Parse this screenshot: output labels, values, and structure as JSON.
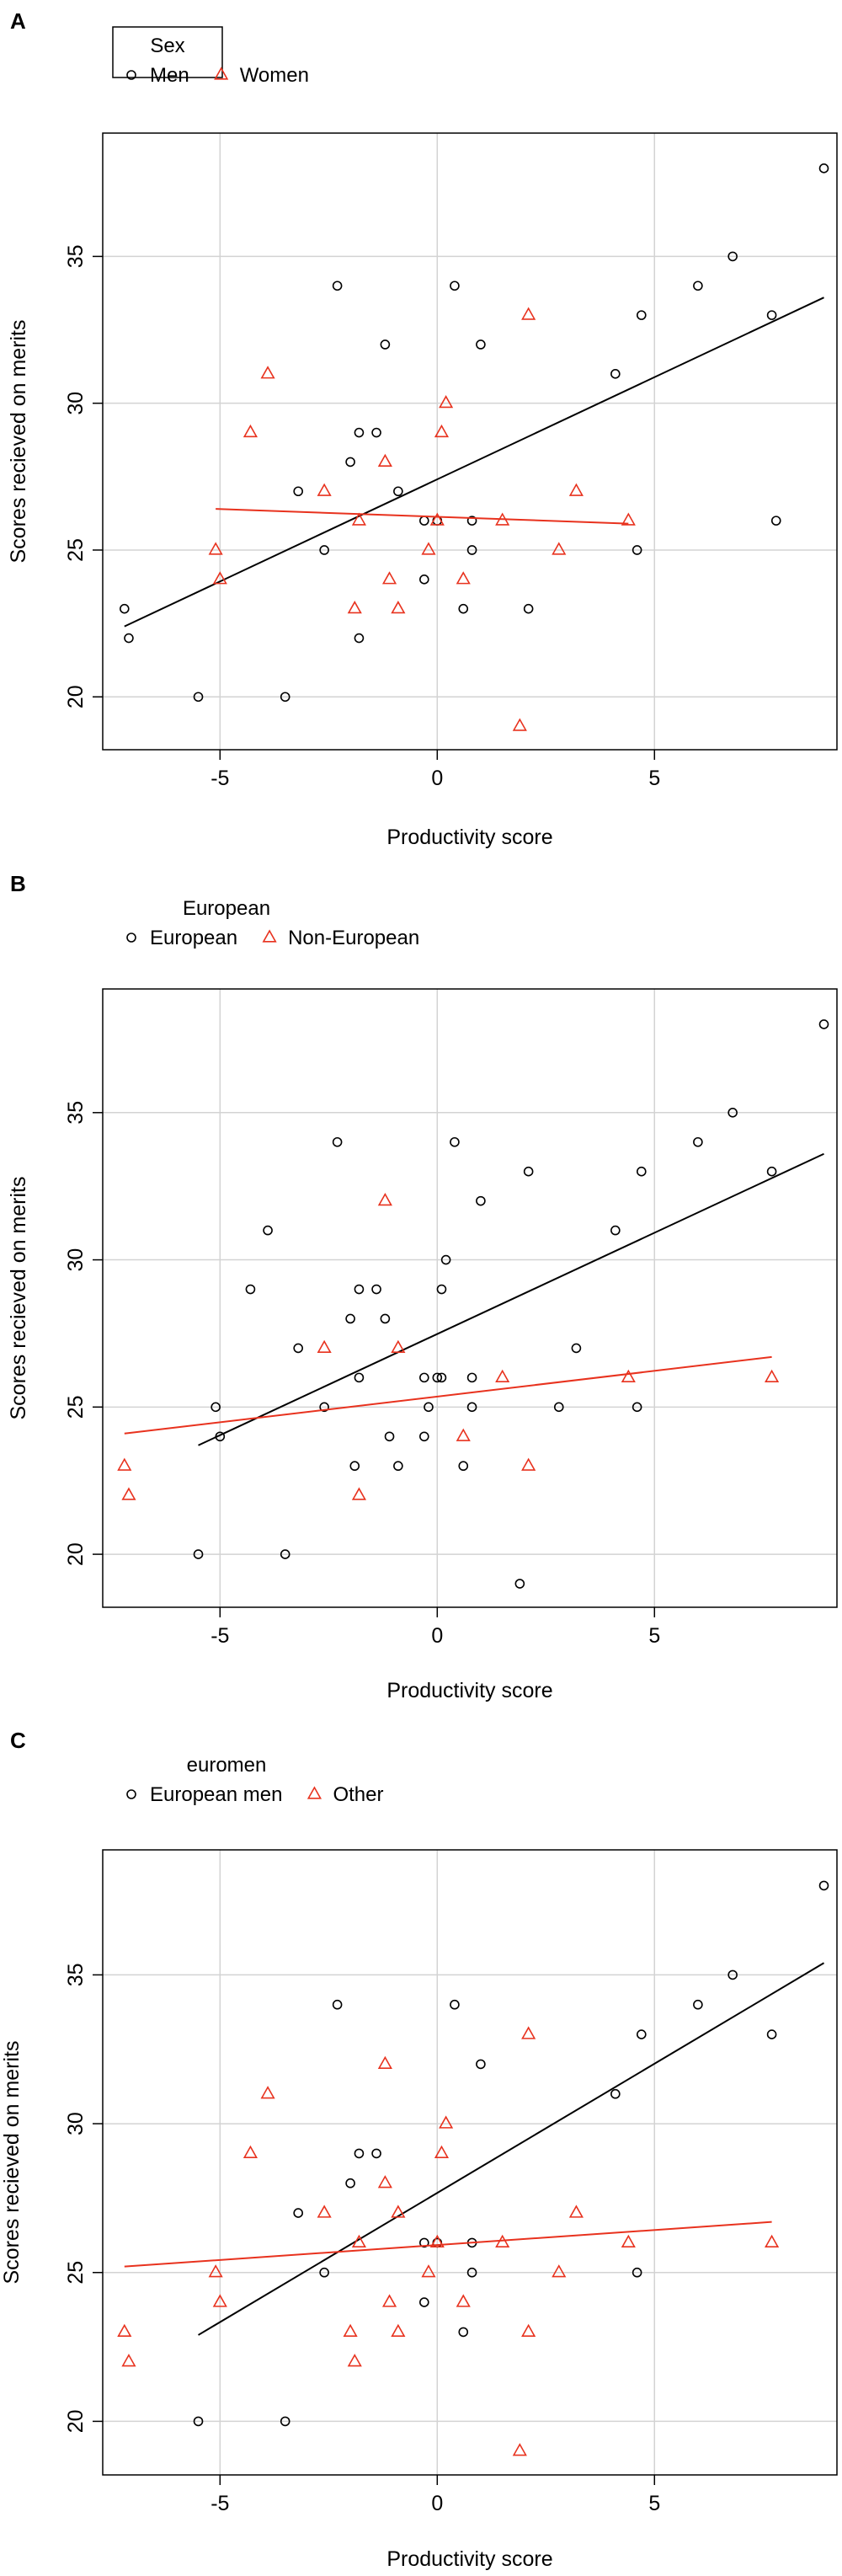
{
  "colors": {
    "series_a": "#000000",
    "series_b": "#e8321e",
    "grid": "#d3d3d3",
    "axis": "#000000"
  },
  "chart_data": [
    {
      "panel_letter": "A",
      "type": "scatter",
      "title": "",
      "xlabel": "Productivity score",
      "ylabel": "Scores recieved on merits",
      "xlim": [
        -7.7,
        9.2
      ],
      "ylim": [
        18.2,
        39.2
      ],
      "xticks": [
        -5,
        0,
        5
      ],
      "yticks": [
        20,
        25,
        30,
        35
      ],
      "grid": true,
      "legend": {
        "position": "top-left",
        "title": "Sex",
        "entries": [
          "Men",
          "Women"
        ]
      },
      "series": [
        {
          "name": "Men",
          "marker": "circle",
          "points": [
            [
              -7.2,
              23
            ],
            [
              -7.1,
              22
            ],
            [
              -5.5,
              20
            ],
            [
              -3.5,
              20
            ],
            [
              -3.2,
              27
            ],
            [
              -2.6,
              25
            ],
            [
              -2.3,
              34
            ],
            [
              -2.0,
              28
            ],
            [
              -1.8,
              29
            ],
            [
              -1.8,
              22
            ],
            [
              -1.4,
              29
            ],
            [
              -1.2,
              32
            ],
            [
              -0.9,
              27
            ],
            [
              -0.3,
              24
            ],
            [
              -0.3,
              26
            ],
            [
              0,
              26
            ],
            [
              0.4,
              34
            ],
            [
              0.6,
              23
            ],
            [
              0.8,
              25
            ],
            [
              0.8,
              26
            ],
            [
              1.0,
              32
            ],
            [
              2.1,
              23
            ],
            [
              4.1,
              31
            ],
            [
              4.6,
              25
            ],
            [
              4.7,
              33
            ],
            [
              6.0,
              34
            ],
            [
              6.8,
              35
            ],
            [
              7.7,
              33
            ],
            [
              7.8,
              26
            ],
            [
              8.9,
              38
            ]
          ],
          "trend": [
            [
              -7.2,
              22.4
            ],
            [
              8.9,
              33.6
            ]
          ]
        },
        {
          "name": "Women",
          "marker": "triangle",
          "points": [
            [
              -5.1,
              25
            ],
            [
              -5.0,
              24
            ],
            [
              -4.3,
              29
            ],
            [
              -3.9,
              31
            ],
            [
              -2.6,
              27
            ],
            [
              -1.9,
              23
            ],
            [
              -1.8,
              26
            ],
            [
              -1.2,
              28
            ],
            [
              -1.1,
              24
            ],
            [
              -0.9,
              23
            ],
            [
              -0.2,
              25
            ],
            [
              0,
              26
            ],
            [
              0.1,
              29
            ],
            [
              0.2,
              30
            ],
            [
              0.6,
              24
            ],
            [
              1.5,
              26
            ],
            [
              1.9,
              19
            ],
            [
              2.1,
              33
            ],
            [
              2.8,
              25
            ],
            [
              3.2,
              27
            ],
            [
              4.4,
              26
            ]
          ],
          "trend": [
            [
              -5.1,
              26.4
            ],
            [
              4.4,
              25.9
            ]
          ]
        }
      ]
    },
    {
      "panel_letter": "B",
      "type": "scatter",
      "title": "",
      "xlabel": "Productivity score",
      "ylabel": "Scores recieved on merits",
      "xlim": [
        -7.7,
        9.2
      ],
      "ylim": [
        18.2,
        39.2
      ],
      "xticks": [
        -5,
        0,
        5
      ],
      "yticks": [
        20,
        25,
        30,
        35
      ],
      "grid": true,
      "legend": {
        "position": "top-left",
        "title": "European",
        "entries": [
          "European",
          "Non-European"
        ]
      },
      "series": [
        {
          "name": "European",
          "marker": "circle",
          "points": [
            [
              -5.5,
              20
            ],
            [
              -5.1,
              25
            ],
            [
              -5.0,
              24
            ],
            [
              -3.9,
              31
            ],
            [
              -3.5,
              20
            ],
            [
              -3.2,
              27
            ],
            [
              -4.3,
              29
            ],
            [
              -2.6,
              25
            ],
            [
              -2.3,
              34
            ],
            [
              -2.0,
              28
            ],
            [
              -1.9,
              23
            ],
            [
              -1.8,
              29
            ],
            [
              -1.8,
              26
            ],
            [
              -1.4,
              29
            ],
            [
              -1.2,
              28
            ],
            [
              -1.1,
              24
            ],
            [
              -0.9,
              23
            ],
            [
              -0.3,
              24
            ],
            [
              -0.3,
              26
            ],
            [
              -0.2,
              25
            ],
            [
              0,
              26
            ],
            [
              0.1,
              29
            ],
            [
              0.1,
              26
            ],
            [
              0.2,
              30
            ],
            [
              0.4,
              34
            ],
            [
              0.6,
              23
            ],
            [
              0.8,
              25
            ],
            [
              0.8,
              26
            ],
            [
              1.0,
              32
            ],
            [
              1.9,
              19
            ],
            [
              2.1,
              33
            ],
            [
              2.8,
              25
            ],
            [
              3.2,
              27
            ],
            [
              4.1,
              31
            ],
            [
              4.6,
              25
            ],
            [
              4.7,
              33
            ],
            [
              6.0,
              34
            ],
            [
              6.8,
              35
            ],
            [
              7.7,
              33
            ],
            [
              8.9,
              38
            ]
          ],
          "trend": [
            [
              -5.5,
              23.7
            ],
            [
              8.9,
              33.6
            ]
          ]
        },
        {
          "name": "Non-European",
          "marker": "triangle",
          "points": [
            [
              -7.2,
              23
            ],
            [
              -7.1,
              22
            ],
            [
              -2.6,
              27
            ],
            [
              -1.8,
              22
            ],
            [
              -1.2,
              32
            ],
            [
              -0.9,
              27
            ],
            [
              0.6,
              24
            ],
            [
              1.5,
              26
            ],
            [
              2.1,
              23
            ],
            [
              4.4,
              26
            ],
            [
              7.7,
              26
            ]
          ],
          "trend": [
            [
              -7.2,
              24.1
            ],
            [
              7.7,
              26.7
            ]
          ]
        }
      ]
    },
    {
      "panel_letter": "C",
      "type": "scatter",
      "title": "",
      "xlabel": "Productivity score",
      "ylabel": "Scores recieved on merits",
      "xlim": [
        -7.7,
        9.2
      ],
      "ylim": [
        18.2,
        39.2
      ],
      "xticks": [
        -5,
        0,
        5
      ],
      "yticks": [
        20,
        25,
        30,
        35
      ],
      "grid": true,
      "legend": {
        "position": "top-left",
        "title": "euromen",
        "entries": [
          "European men",
          "Other"
        ]
      },
      "series": [
        {
          "name": "European men",
          "marker": "circle",
          "points": [
            [
              -5.5,
              20
            ],
            [
              -3.5,
              20
            ],
            [
              -3.2,
              27
            ],
            [
              -2.6,
              25
            ],
            [
              -2.3,
              34
            ],
            [
              -2.0,
              28
            ],
            [
              -1.8,
              29
            ],
            [
              -1.4,
              29
            ],
            [
              -0.3,
              24
            ],
            [
              -0.3,
              26
            ],
            [
              0,
              26
            ],
            [
              0.4,
              34
            ],
            [
              0.6,
              23
            ],
            [
              0.8,
              25
            ],
            [
              0.8,
              26
            ],
            [
              1.0,
              32
            ],
            [
              4.1,
              31
            ],
            [
              4.6,
              25
            ],
            [
              4.7,
              33
            ],
            [
              6.0,
              34
            ],
            [
              6.8,
              35
            ],
            [
              7.7,
              33
            ],
            [
              8.9,
              38
            ]
          ],
          "trend": [
            [
              -5.5,
              22.9
            ],
            [
              8.9,
              35.4
            ]
          ]
        },
        {
          "name": "Other",
          "marker": "triangle",
          "points": [
            [
              -7.2,
              23
            ],
            [
              -7.1,
              22
            ],
            [
              -5.1,
              25
            ],
            [
              -5.0,
              24
            ],
            [
              -4.3,
              29
            ],
            [
              -3.9,
              31
            ],
            [
              -2.6,
              27
            ],
            [
              -2.0,
              23
            ],
            [
              -1.9,
              22
            ],
            [
              -1.8,
              26
            ],
            [
              -1.2,
              32
            ],
            [
              -1.2,
              28
            ],
            [
              -1.1,
              24
            ],
            [
              -0.9,
              27
            ],
            [
              -0.9,
              23
            ],
            [
              -0.2,
              25
            ],
            [
              0,
              26
            ],
            [
              0.1,
              29
            ],
            [
              0.2,
              30
            ],
            [
              0.6,
              24
            ],
            [
              1.5,
              26
            ],
            [
              1.9,
              19
            ],
            [
              2.1,
              33
            ],
            [
              2.1,
              23
            ],
            [
              2.8,
              25
            ],
            [
              3.2,
              27
            ],
            [
              4.4,
              26
            ],
            [
              7.7,
              26
            ]
          ],
          "trend": [
            [
              -7.2,
              25.2
            ],
            [
              7.7,
              26.7
            ]
          ]
        }
      ]
    }
  ]
}
